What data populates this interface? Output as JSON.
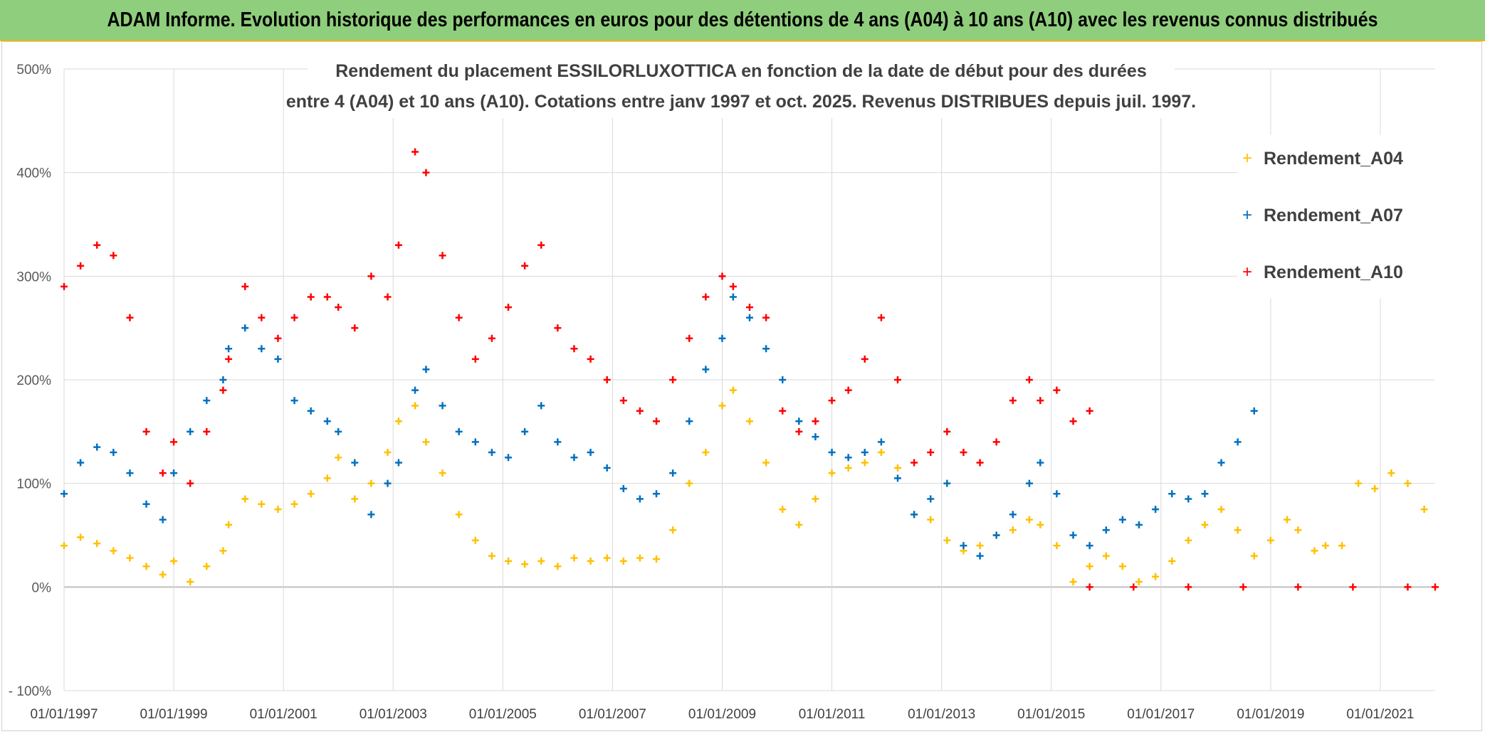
{
  "banner": {
    "title": "ADAM Informe. Evolution historique des performances en euros pour des détentions de 4 ans (A04) à 10 ans (A10) avec les revenus connus distribués"
  },
  "chart_data": {
    "type": "scatter",
    "title_lines": [
      "Rendement du placement ESSILORLUXOTTICA en fonction de la date de début pour des durées",
      "entre 4 (A04) et 10 ans (A10). Cotations entre janv 1997 et oct. 2025. Revenus DISTRIBUES depuis juil. 1997."
    ],
    "xlabel": "",
    "ylabel": "",
    "ylim": [
      -100,
      500
    ],
    "xlim": [
      1997.0,
      2022.0
    ],
    "y_ticks": [
      -100,
      0,
      100,
      200,
      300,
      400,
      500
    ],
    "y_tick_labels": [
      "- 100%",
      "0%",
      "100%",
      "200%",
      "300%",
      "400%",
      "500%"
    ],
    "x_ticks": [
      1997,
      1999,
      2001,
      2003,
      2005,
      2007,
      2009,
      2011,
      2013,
      2015,
      2017,
      2019,
      2021
    ],
    "x_tick_labels": [
      "01/01/1997",
      "01/01/1999",
      "01/01/2001",
      "01/01/2003",
      "01/01/2005",
      "01/01/2007",
      "01/01/2009",
      "01/01/2011",
      "01/01/2013",
      "01/01/2015",
      "01/01/2017",
      "01/01/2019",
      "01/01/2021"
    ],
    "grid": true,
    "legend_position": "right",
    "series": [
      {
        "name": "Rendement_A04",
        "color": "#ffc000",
        "x": [
          1997.0,
          1997.3,
          1997.6,
          1997.9,
          1998.2,
          1998.5,
          1998.8,
          1999.0,
          1999.3,
          1999.6,
          1999.9,
          2000.0,
          2000.3,
          2000.6,
          2000.9,
          2001.2,
          2001.5,
          2001.8,
          2002.0,
          2002.3,
          2002.6,
          2002.9,
          2003.1,
          2003.4,
          2003.6,
          2003.9,
          2004.2,
          2004.5,
          2004.8,
          2005.1,
          2005.4,
          2005.7,
          2006.0,
          2006.3,
          2006.6,
          2006.9,
          2007.2,
          2007.5,
          2007.8,
          2008.1,
          2008.4,
          2008.7,
          2009.0,
          2009.2,
          2009.5,
          2009.8,
          2010.1,
          2010.4,
          2010.7,
          2011.0,
          2011.3,
          2011.6,
          2011.9,
          2012.2,
          2012.5,
          2012.8,
          2013.1,
          2013.4,
          2013.7,
          2014.0,
          2014.3,
          2014.6,
          2014.8,
          2015.1,
          2015.4,
          2015.7,
          2016.0,
          2016.3,
          2016.6,
          2016.9,
          2017.2,
          2017.5,
          2017.8,
          2018.1,
          2018.4,
          2018.7,
          2019.0,
          2019.3,
          2019.5,
          2019.8,
          2020.0,
          2020.3,
          2020.6,
          2020.9,
          2021.2,
          2021.5,
          2021.8
        ],
        "y": [
          40,
          48,
          42,
          35,
          28,
          20,
          12,
          25,
          5,
          20,
          35,
          60,
          85,
          80,
          75,
          80,
          90,
          105,
          125,
          85,
          100,
          130,
          160,
          175,
          140,
          110,
          70,
          45,
          30,
          25,
          22,
          25,
          20,
          28,
          25,
          28,
          25,
          28,
          27,
          55,
          100,
          130,
          175,
          190,
          160,
          120,
          75,
          60,
          85,
          110,
          115,
          120,
          130,
          115,
          70,
          65,
          45,
          35,
          40,
          50,
          55,
          65,
          60,
          40,
          5,
          20,
          30,
          20,
          5,
          10,
          25,
          45,
          60,
          75,
          55,
          30,
          45,
          65,
          55,
          35,
          40,
          40,
          100,
          95,
          110,
          100,
          75
        ]
      },
      {
        "name": "Rendement_A07",
        "color": "#0070c0",
        "x": [
          1997.0,
          1997.3,
          1997.6,
          1997.9,
          1998.2,
          1998.5,
          1998.8,
          1999.0,
          1999.3,
          1999.6,
          1999.9,
          2000.0,
          2000.3,
          2000.6,
          2000.9,
          2001.2,
          2001.5,
          2001.8,
          2002.0,
          2002.3,
          2002.6,
          2002.9,
          2003.1,
          2003.4,
          2003.6,
          2003.9,
          2004.2,
          2004.5,
          2004.8,
          2005.1,
          2005.4,
          2005.7,
          2006.0,
          2006.3,
          2006.6,
          2006.9,
          2007.2,
          2007.5,
          2007.8,
          2008.1,
          2008.4,
          2008.7,
          2009.0,
          2009.2,
          2009.5,
          2009.8,
          2010.1,
          2010.4,
          2010.7,
          2011.0,
          2011.3,
          2011.6,
          2011.9,
          2012.2,
          2012.5,
          2012.8,
          2013.1,
          2013.4,
          2013.7,
          2014.0,
          2014.3,
          2014.6,
          2014.8,
          2015.1,
          2015.4,
          2015.7,
          2016.0,
          2016.3,
          2016.6,
          2016.9,
          2017.2,
          2017.5,
          2017.8,
          2018.1,
          2018.4,
          2018.7
        ],
        "y": [
          90,
          120,
          135,
          130,
          110,
          80,
          65,
          110,
          150,
          180,
          200,
          230,
          250,
          230,
          220,
          180,
          170,
          160,
          150,
          120,
          70,
          100,
          120,
          190,
          210,
          175,
          150,
          140,
          130,
          125,
          150,
          175,
          140,
          125,
          130,
          115,
          95,
          85,
          90,
          110,
          160,
          210,
          240,
          280,
          260,
          230,
          200,
          160,
          145,
          130,
          125,
          130,
          140,
          105,
          70,
          85,
          100,
          40,
          30,
          50,
          70,
          100,
          120,
          90,
          50,
          40,
          55,
          65,
          60,
          75,
          90,
          85,
          90,
          120,
          140,
          170
        ]
      },
      {
        "name": "Rendement_A10",
        "color": "#ff0000",
        "x": [
          1997.0,
          1997.3,
          1997.6,
          1997.9,
          1998.2,
          1998.5,
          1998.8,
          1999.0,
          1999.3,
          1999.6,
          1999.9,
          2000.0,
          2000.3,
          2000.6,
          2000.9,
          2001.2,
          2001.5,
          2001.8,
          2002.0,
          2002.3,
          2002.6,
          2002.9,
          2003.1,
          2003.4,
          2003.6,
          2003.9,
          2004.2,
          2004.5,
          2004.8,
          2005.1,
          2005.4,
          2005.7,
          2006.0,
          2006.3,
          2006.6,
          2006.9,
          2007.2,
          2007.5,
          2007.8,
          2008.1,
          2008.4,
          2008.7,
          2009.0,
          2009.2,
          2009.5,
          2009.8,
          2010.1,
          2010.4,
          2010.7,
          2011.0,
          2011.3,
          2011.6,
          2011.9,
          2012.2,
          2012.5,
          2012.8,
          2013.1,
          2013.4,
          2013.7,
          2014.0,
          2014.3,
          2014.6,
          2014.8,
          2015.1,
          2015.4,
          2015.7
        ],
        "y": [
          290,
          310,
          330,
          320,
          260,
          150,
          110,
          140,
          100,
          150,
          190,
          220,
          290,
          260,
          240,
          260,
          280,
          280,
          270,
          250,
          300,
          280,
          330,
          420,
          400,
          320,
          260,
          220,
          240,
          270,
          310,
          330,
          250,
          230,
          220,
          200,
          180,
          170,
          160,
          200,
          240,
          280,
          300,
          290,
          270,
          260,
          170,
          150,
          160,
          180,
          190,
          220,
          260,
          200,
          120,
          130,
          150,
          130,
          120,
          140,
          180,
          200,
          180,
          190,
          160,
          170
        ]
      },
      {
        "name": "",
        "color": "#ff0000",
        "x": [
          2015.7,
          2016.5,
          2017.5,
          2018.5,
          2019.5,
          2020.5,
          2021.5,
          2022.0
        ],
        "y": [
          0,
          0,
          0,
          0,
          0,
          0,
          0,
          0
        ]
      }
    ]
  }
}
